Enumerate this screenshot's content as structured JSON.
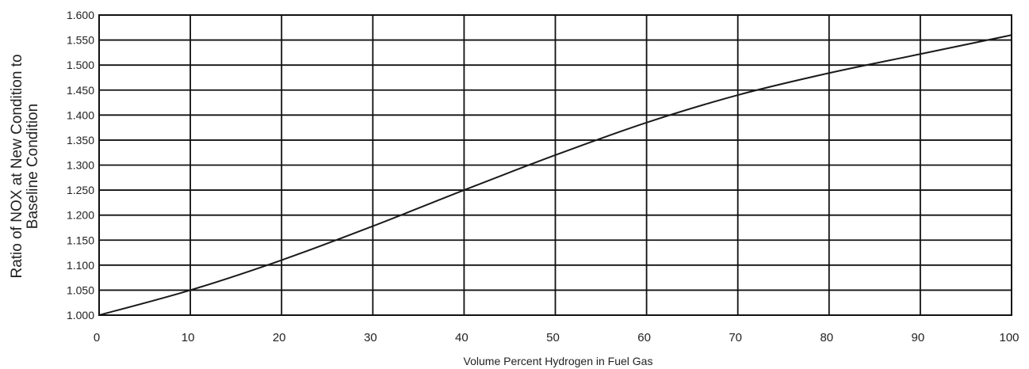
{
  "chart_data": {
    "type": "line",
    "title": "",
    "xlabel": "Volume Percent Hydrogen in Fuel Gas",
    "ylabel_line1": "Ratio of NOX at New Condition to",
    "ylabel_line2": "Baseline Condition",
    "xlim": [
      0,
      100
    ],
    "ylim": [
      1.0,
      1.6
    ],
    "grid": true,
    "legend": "none",
    "x_ticks": [
      "0",
      "10",
      "20",
      "30",
      "40",
      "50",
      "60",
      "70",
      "80",
      "90",
      "100"
    ],
    "y_ticks": [
      "1.000",
      "1.050",
      "1.100",
      "1.150",
      "1.200",
      "1.250",
      "1.300",
      "1.350",
      "1.400",
      "1.450",
      "1.500",
      "1.550",
      "1.600"
    ],
    "series": [
      {
        "color": "#1a1a1a",
        "x": [
          0,
          10,
          20,
          30,
          40,
          50,
          60,
          70,
          80,
          90,
          100
        ],
        "y": [
          1.0,
          1.05,
          1.11,
          1.178,
          1.25,
          1.32,
          1.385,
          1.44,
          1.484,
          1.522,
          1.56
        ]
      }
    ]
  }
}
